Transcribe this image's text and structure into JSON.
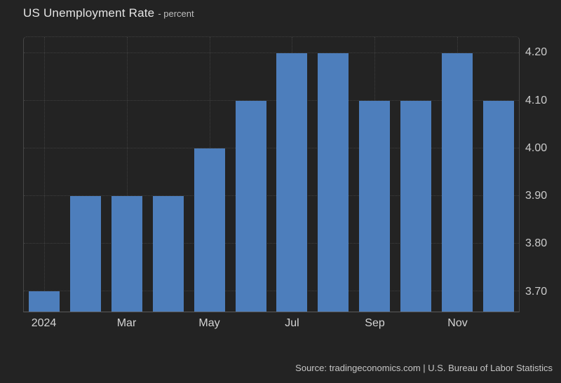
{
  "header": {
    "title": "US Unemployment Rate",
    "subtitle": "- percent"
  },
  "footer": {
    "source": "Source: tradingeconomics.com | U.S. Bureau of Labor Statistics"
  },
  "colors": {
    "background": "#232323",
    "bar": "#4d7ebc",
    "gridline": "#3f3f3f",
    "axis_line": "#474747",
    "tick_label": "#cccccc",
    "title_text": "#e4e4e4",
    "footer_text": "#c6c6c6"
  },
  "chart_data": {
    "type": "bar",
    "title": "US Unemployment Rate",
    "ylabel": "percent",
    "xlabel": "",
    "categories": [
      "Jan 2024",
      "Feb 2024",
      "Mar 2024",
      "Apr 2024",
      "May 2024",
      "Jun 2024",
      "Jul 2024",
      "Aug 2024",
      "Sep 2024",
      "Oct 2024",
      "Nov 2024",
      "Dec 2024"
    ],
    "values": [
      3.7,
      3.9,
      3.9,
      3.9,
      4.0,
      4.1,
      4.2,
      4.2,
      4.1,
      4.1,
      4.2,
      4.1
    ],
    "x_tick_labels": [
      {
        "index": 0,
        "label": "2024"
      },
      {
        "index": 2,
        "label": "Mar"
      },
      {
        "index": 4,
        "label": "May"
      },
      {
        "index": 6,
        "label": "Jul"
      },
      {
        "index": 8,
        "label": "Sep"
      },
      {
        "index": 10,
        "label": "Nov"
      }
    ],
    "y_ticks": [
      {
        "value": 3.7,
        "label": "3.70"
      },
      {
        "value": 3.8,
        "label": "3.80"
      },
      {
        "value": 3.9,
        "label": "3.90"
      },
      {
        "value": 4.0,
        "label": "4.00"
      },
      {
        "value": 4.1,
        "label": "4.10"
      },
      {
        "value": 4.2,
        "label": "4.20"
      }
    ],
    "ylim": [
      3.657,
      4.234
    ],
    "y_axis_side": "right",
    "grid": true,
    "legend": false
  }
}
